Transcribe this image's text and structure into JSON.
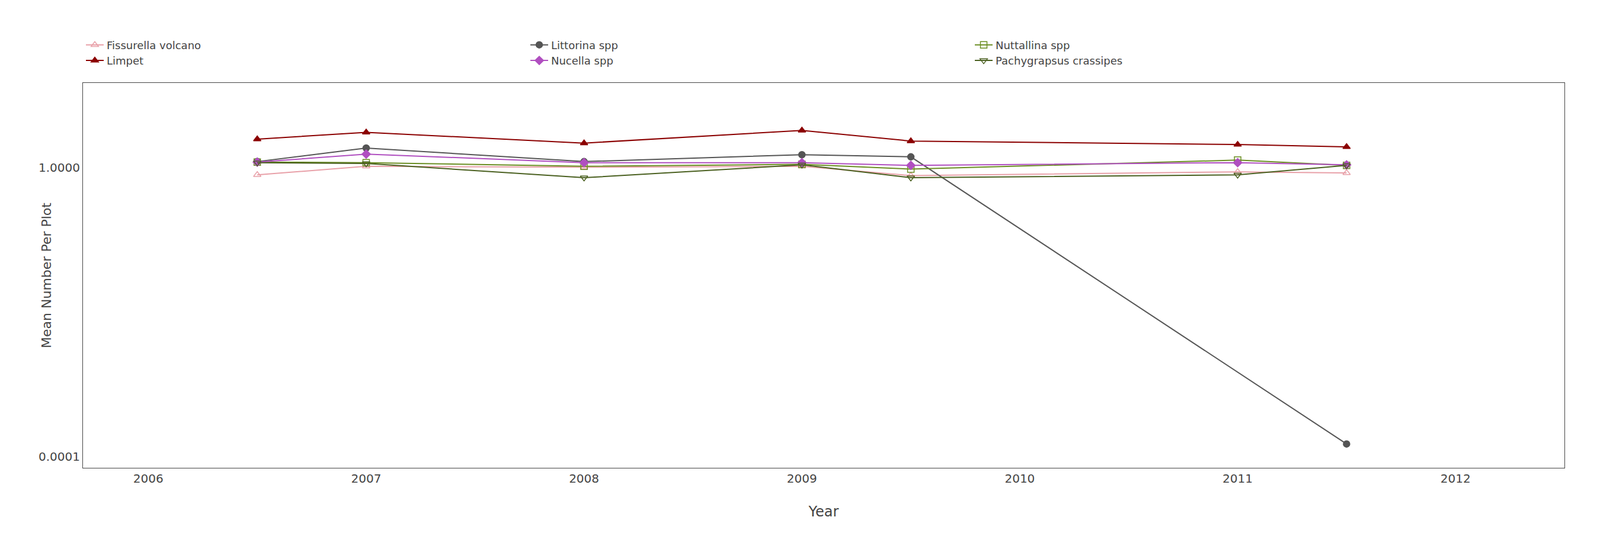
{
  "chart_data": {
    "type": "line",
    "xlabel": "Year",
    "ylabel": "Mean Number Per Plot",
    "xlim": [
      2005.7,
      2012.5
    ],
    "xticks": [
      2006,
      2007,
      2008,
      2009,
      2010,
      2011,
      2012
    ],
    "ylim": [
      7e-05,
      15
    ],
    "yticks": [
      0.0001,
      {
        "value": 1.0,
        "label": "1.0000"
      }
    ],
    "log": "y",
    "grid": false,
    "legend": "top",
    "series": [
      {
        "name": "Fissurella volcano",
        "color": "#e8a0a8",
        "marker": "triangle-up-open",
        "x": [
          2006.5,
          2007.0,
          2008.0,
          2009.0,
          2009.5,
          2011.0,
          2011.5
        ],
        "values": [
          0.8,
          1.05,
          1.02,
          1.05,
          0.78,
          0.88,
          0.85
        ]
      },
      {
        "name": "Littorina spp",
        "color": "#555555",
        "marker": "circle",
        "x": [
          2006.5,
          2007.0,
          2008.0,
          2009.0,
          2009.5,
          2011.5
        ],
        "values": [
          1.22,
          1.88,
          1.22,
          1.52,
          1.42,
          0.00015
        ]
      },
      {
        "name": "Nuttallina spp",
        "color": "#6b8e23",
        "marker": "square-open",
        "x": [
          2006.5,
          2007.0,
          2008.0,
          2009.0,
          2009.5,
          2011.0,
          2011.5
        ],
        "values": [
          1.2,
          1.18,
          1.05,
          1.12,
          0.96,
          1.28,
          1.08
        ]
      },
      {
        "name": "Limpet",
        "color": "#8b0000",
        "marker": "triangle-up",
        "x": [
          2006.5,
          2007.0,
          2008.0,
          2009.0,
          2009.5,
          2011.0,
          2011.5
        ],
        "values": [
          2.5,
          3.1,
          2.2,
          3.3,
          2.35,
          2.1,
          1.95
        ]
      },
      {
        "name": "Nucella spp",
        "color": "#b04fc0",
        "marker": "diamond",
        "x": [
          2006.5,
          2007.0,
          2008.0,
          2009.0,
          2009.5,
          2011.0,
          2011.5
        ],
        "values": [
          1.2,
          1.55,
          1.18,
          1.18,
          1.08,
          1.18,
          1.1
        ]
      },
      {
        "name": "Pachygrapsus crassipes",
        "color": "#4a6020",
        "marker": "triangle-down-open",
        "x": [
          2006.5,
          2007.0,
          2008.0,
          2009.0,
          2009.5,
          2011.0,
          2011.5
        ],
        "values": [
          1.18,
          1.15,
          0.73,
          1.1,
          0.73,
          0.8,
          1.08
        ]
      }
    ]
  }
}
